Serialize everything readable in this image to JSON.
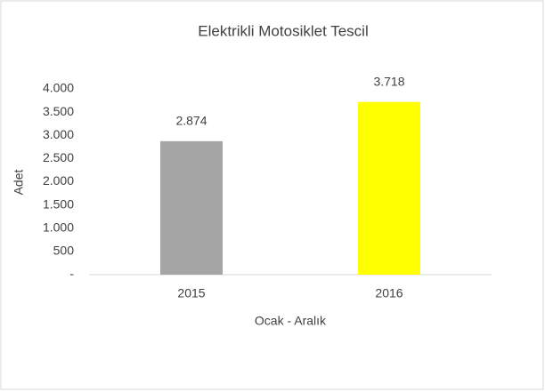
{
  "chart_data": {
    "type": "bar",
    "title": "Elektrikli Motosiklet Tescil",
    "x_label": "Ocak - Aralık",
    "y_label": "Adet",
    "categories": [
      "2015",
      "2016"
    ],
    "values": [
      2874,
      3718
    ],
    "value_labels": [
      "2.874",
      "3.718"
    ],
    "colors": [
      "#a5a5a5",
      "#ffff00"
    ],
    "ylim": [
      0,
      4000
    ],
    "yticks": [
      {
        "value": 0,
        "label": "-"
      },
      500,
      {
        "value": 1000,
        "label": "1.000"
      },
      {
        "value": 1500,
        "label": "1.500"
      },
      {
        "value": 2000,
        "label": "2.000"
      },
      {
        "value": 2500,
        "label": "2.500"
      },
      {
        "value": 3000,
        "label": "3.000"
      },
      {
        "value": 3500,
        "label": "3.500"
      },
      {
        "value": 4000,
        "label": "4.000"
      }
    ],
    "grid": false
  }
}
